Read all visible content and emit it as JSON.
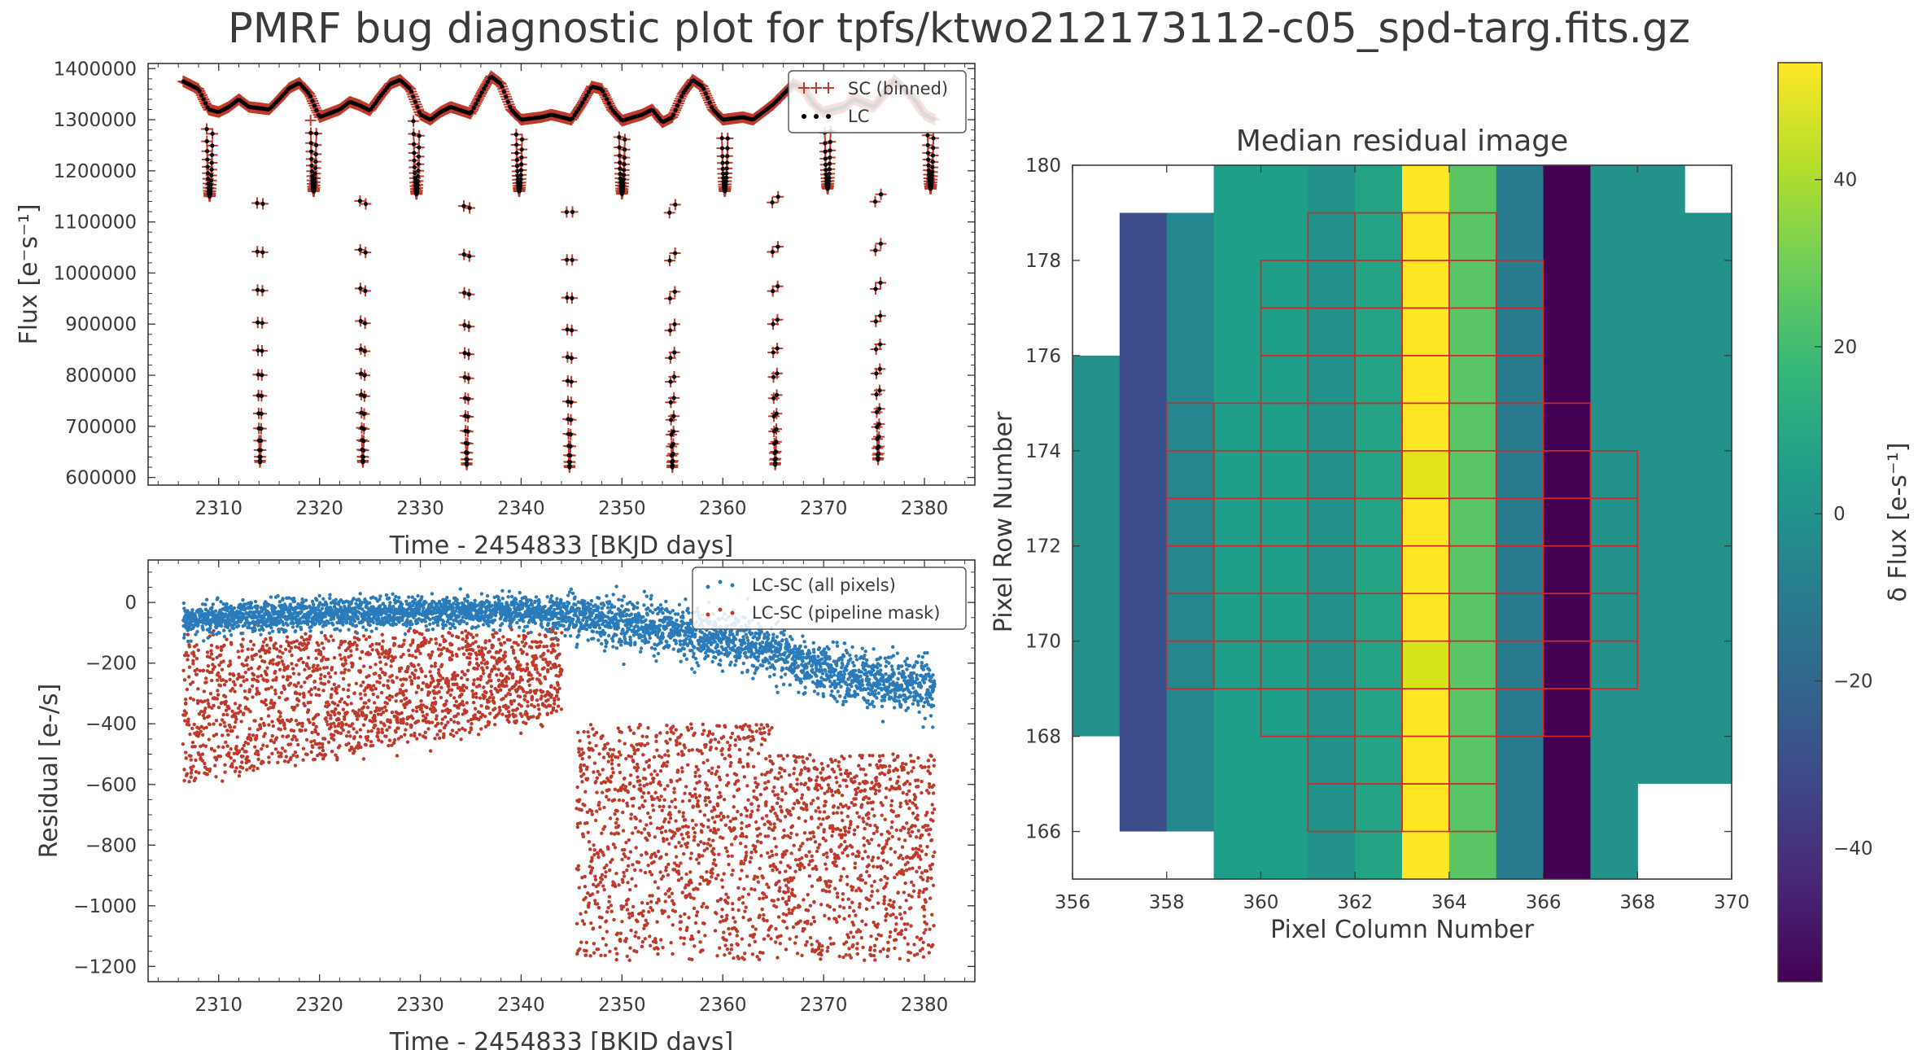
{
  "figure": {
    "title": "PMRF bug diagnostic plot for tpfs/ktwo212173112-c05_spd-targ.fits.gz"
  },
  "chart_data": [
    {
      "type": "line",
      "panel": "lightcurve",
      "title": "",
      "xlabel": "Time - 2454833 [BKJD days]",
      "ylabel": "Flux [e⁻s⁻¹]",
      "xlim": [
        2303,
        2385
      ],
      "ylim": [
        585000,
        1410000
      ],
      "xticks": [
        2310,
        2320,
        2330,
        2340,
        2350,
        2360,
        2370,
        2380
      ],
      "yticks": [
        600000,
        700000,
        800000,
        900000,
        1000000,
        1100000,
        1200000,
        1300000,
        1400000
      ],
      "legend_position": "top-right",
      "grid": false,
      "series": [
        {
          "name": "SC (binned)",
          "marker": "+",
          "color": "#c03a2b",
          "baseline_points": [
            [
              2306.5,
              1375000
            ],
            [
              2308,
              1360000
            ],
            [
              2309,
              1320000
            ],
            [
              2310,
              1315000
            ],
            [
              2311,
              1325000
            ],
            [
              2312,
              1340000
            ],
            [
              2313,
              1325000
            ],
            [
              2315,
              1320000
            ],
            [
              2316,
              1340000
            ],
            [
              2317,
              1362000
            ],
            [
              2318,
              1372000
            ],
            [
              2319,
              1350000
            ],
            [
              2320,
              1305000
            ],
            [
              2322,
              1320000
            ],
            [
              2323,
              1335000
            ],
            [
              2324,
              1328000
            ],
            [
              2325,
              1318000
            ],
            [
              2326,
              1345000
            ],
            [
              2327,
              1370000
            ],
            [
              2328,
              1378000
            ],
            [
              2329,
              1360000
            ],
            [
              2330,
              1310000
            ],
            [
              2331,
              1300000
            ],
            [
              2332,
              1315000
            ],
            [
              2333,
              1325000
            ],
            [
              2335,
              1312000
            ],
            [
              2336,
              1350000
            ],
            [
              2337,
              1385000
            ],
            [
              2338,
              1370000
            ],
            [
              2339,
              1320000
            ],
            [
              2340,
              1300000
            ],
            [
              2342,
              1305000
            ],
            [
              2343,
              1310000
            ],
            [
              2345,
              1300000
            ],
            [
              2346,
              1330000
            ],
            [
              2347,
              1365000
            ],
            [
              2348,
              1360000
            ],
            [
              2349,
              1320000
            ],
            [
              2350,
              1298000
            ],
            [
              2352,
              1310000
            ],
            [
              2353,
              1320000
            ],
            [
              2354,
              1295000
            ],
            [
              2355,
              1305000
            ],
            [
              2356,
              1350000
            ],
            [
              2357,
              1378000
            ],
            [
              2358,
              1365000
            ],
            [
              2359,
              1320000
            ],
            [
              2360,
              1300000
            ],
            [
              2362,
              1305000
            ],
            [
              2363,
              1300000
            ],
            [
              2365,
              1330000
            ],
            [
              2367,
              1370000
            ],
            [
              2368,
              1360000
            ],
            [
              2369,
              1330000
            ],
            [
              2370,
              1315000
            ],
            [
              2372,
              1325000
            ],
            [
              2373,
              1340000
            ],
            [
              2375,
              1325000
            ],
            [
              2376,
              1350000
            ],
            [
              2377,
              1378000
            ],
            [
              2379,
              1340000
            ],
            [
              2380,
              1310000
            ],
            [
              2381,
              1300000
            ]
          ],
          "eclipses": [
            {
              "t": 2314.1,
              "min_flux": 630000
            },
            {
              "t": 2324.3,
              "min_flux": 630000
            },
            {
              "t": 2334.6,
              "min_flux": 625000
            },
            {
              "t": 2344.8,
              "min_flux": 620000
            },
            {
              "t": 2355.0,
              "min_flux": 620000
            },
            {
              "t": 2365.2,
              "min_flux": 625000
            },
            {
              "t": 2375.4,
              "min_flux": 635000
            },
            {
              "t": 2309.1,
              "min_flux": 1150000
            },
            {
              "t": 2319.4,
              "min_flux": 1160000
            },
            {
              "t": 2329.6,
              "min_flux": 1155000
            },
            {
              "t": 2339.8,
              "min_flux": 1160000
            },
            {
              "t": 2350.0,
              "min_flux": 1155000
            },
            {
              "t": 2360.2,
              "min_flux": 1160000
            },
            {
              "t": 2370.4,
              "min_flux": 1165000
            },
            {
              "t": 2380.6,
              "min_flux": 1165000
            }
          ]
        },
        {
          "name": "LC",
          "marker": "dot",
          "color": "#000000"
        }
      ]
    },
    {
      "type": "scatter",
      "panel": "residuals",
      "title": "",
      "xlabel": "Time - 2454833 [BKJD days]",
      "ylabel": "Residual [e-/s]",
      "xlim": [
        2303,
        2385
      ],
      "ylim": [
        -1250,
        140
      ],
      "xticks": [
        2310,
        2320,
        2330,
        2340,
        2350,
        2360,
        2370,
        2380
      ],
      "yticks": [
        0,
        -200,
        -400,
        -600,
        -800,
        -1000,
        -1200
      ],
      "legend_position": "top-right",
      "grid": false,
      "series": [
        {
          "name": "LC-SC (all pixels)",
          "color": "#2b7bba",
          "trend": [
            [
              2306.5,
              -60
            ],
            [
              2320,
              -35
            ],
            [
              2330,
              -30
            ],
            [
              2344,
              -35
            ],
            [
              2345,
              -40
            ],
            [
              2355,
              -90
            ],
            [
              2364,
              -150
            ],
            [
              2370,
              -230
            ],
            [
              2381,
              -280
            ]
          ],
          "scatter_sd": [
            [
              2306.5,
              25
            ],
            [
              2344,
              25
            ],
            [
              2345,
              40
            ],
            [
              2381,
              45
            ]
          ]
        },
        {
          "name": "LC-SC (pipeline mask)",
          "color": "#c03a2b",
          "segment_1": {
            "t_range": [
              2306.5,
              2344
            ],
            "y_range": [
              -700,
              -60
            ]
          },
          "segment_2": {
            "t_range": [
              2345.5,
              2381
            ],
            "y_range": [
              -1180,
              -380
            ]
          }
        }
      ]
    },
    {
      "type": "heatmap",
      "panel": "residual-image",
      "title": "Median residual image",
      "xlabel": "Pixel Column Number",
      "ylabel": "Pixel Row Number",
      "xlim": [
        356,
        370
      ],
      "ylim": [
        165,
        180
      ],
      "xticks": [
        356,
        358,
        360,
        362,
        364,
        366,
        368,
        370
      ],
      "yticks": [
        166,
        168,
        170,
        172,
        174,
        176,
        178,
        180
      ],
      "colormap": "viridis",
      "vmin": -56,
      "vmax": 54,
      "colorbar": {
        "label": "δ Flux [e-s⁻¹]",
        "ticks": [
          40,
          20,
          0,
          -20,
          -40
        ]
      },
      "columns": [
        {
          "col": 356,
          "value": 0,
          "rows": [
            168,
            175
          ]
        },
        {
          "col": 357,
          "value": -30,
          "rows": [
            166,
            178
          ]
        },
        {
          "col": 358,
          "value": -5,
          "rows": [
            166,
            178
          ]
        },
        {
          "col": 359,
          "value": 5,
          "rows": [
            165,
            179
          ]
        },
        {
          "col": 360,
          "value": 5,
          "rows": [
            165,
            179
          ]
        },
        {
          "col": 361,
          "value": 0,
          "rows": [
            165,
            179
          ]
        },
        {
          "col": 362,
          "value": 8,
          "rows": [
            165,
            179
          ]
        },
        {
          "col": 363,
          "value": 54,
          "rows": [
            165,
            179
          ]
        },
        {
          "col": 364,
          "value": 25,
          "rows": [
            165,
            179
          ]
        },
        {
          "col": 365,
          "value": -10,
          "rows": [
            165,
            179
          ]
        },
        {
          "col": 366,
          "value": -56,
          "rows": [
            165,
            179
          ]
        },
        {
          "col": 367,
          "value": 0,
          "rows": [
            165,
            179
          ]
        },
        {
          "col": 368,
          "value": 0,
          "rows": [
            167,
            179
          ]
        },
        {
          "col": 369,
          "value": 0,
          "rows": [
            167,
            178
          ]
        }
      ],
      "pipeline_mask_rows": [
        {
          "row": 166,
          "cols": [
            361,
            365
          ]
        },
        {
          "row": 167,
          "cols": [
            361,
            365
          ]
        },
        {
          "row": 168,
          "cols": [
            360,
            367
          ]
        },
        {
          "row": 169,
          "cols": [
            358,
            368
          ]
        },
        {
          "row": 170,
          "cols": [
            358,
            368
          ]
        },
        {
          "row": 171,
          "cols": [
            358,
            368
          ]
        },
        {
          "row": 172,
          "cols": [
            358,
            368
          ]
        },
        {
          "row": 173,
          "cols": [
            358,
            368
          ]
        },
        {
          "row": 174,
          "cols": [
            358,
            367
          ]
        },
        {
          "row": 175,
          "cols": [
            360,
            366
          ]
        },
        {
          "row": 176,
          "cols": [
            360,
            366
          ]
        },
        {
          "row": 177,
          "cols": [
            360,
            366
          ]
        },
        {
          "row": 178,
          "cols": [
            361,
            365
          ]
        }
      ],
      "mask_color": "#d62728"
    }
  ]
}
